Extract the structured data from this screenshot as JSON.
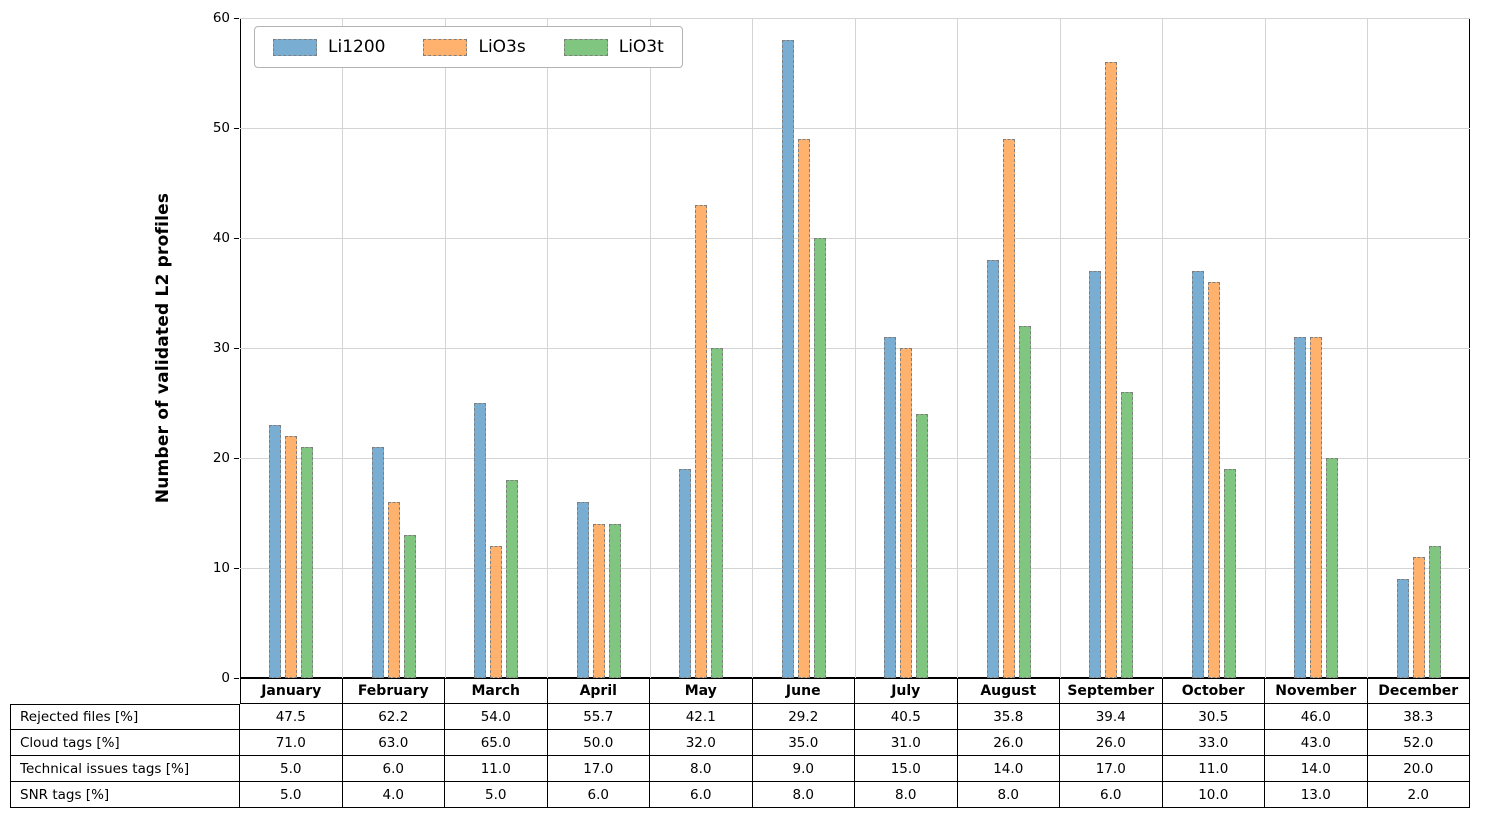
{
  "chart_data": {
    "type": "bar",
    "title": "",
    "ylabel": "Number of validated L2 profiles",
    "xlabel": "",
    "ylim": [
      0,
      60
    ],
    "yticks": [
      0,
      10,
      20,
      30,
      40,
      50,
      60
    ],
    "grid": true,
    "legend_position": "upper left",
    "bar_edge_style": "dashed gray",
    "categories": [
      "January",
      "February",
      "March",
      "April",
      "May",
      "June",
      "July",
      "August",
      "September",
      "October",
      "November",
      "December"
    ],
    "series": [
      {
        "name": "Li1200",
        "color": "#79ADD2",
        "edge_color": "#7f7f7f",
        "values": [
          23,
          21,
          25,
          16,
          19,
          58,
          31,
          38,
          37,
          37,
          31,
          9
        ]
      },
      {
        "name": "LiO3s",
        "color": "#FFB26E",
        "edge_color": "#7f7f7f",
        "values": [
          22,
          16,
          12,
          14,
          43,
          49,
          30,
          49,
          56,
          36,
          31,
          11
        ]
      },
      {
        "name": "LiO3t",
        "color": "#80C680",
        "edge_color": "#7f7f7f",
        "values": [
          21,
          13,
          18,
          14,
          30,
          40,
          24,
          32,
          26,
          19,
          20,
          12
        ]
      }
    ],
    "table": {
      "row_labels": [
        "Rejected files [%]",
        "Cloud tags [%]",
        "Technical issues tags [%]",
        "SNR tags [%]"
      ],
      "rows": [
        [
          "47.5",
          "62.2",
          "54.0",
          "55.7",
          "42.1",
          "29.2",
          "40.5",
          "35.8",
          "39.4",
          "30.5",
          "46.0",
          "38.3"
        ],
        [
          "71.0",
          "63.0",
          "65.0",
          "50.0",
          "32.0",
          "35.0",
          "31.0",
          "26.0",
          "26.0",
          "33.0",
          "43.0",
          "52.0"
        ],
        [
          "5.0",
          "6.0",
          "11.0",
          "17.0",
          "8.0",
          "9.0",
          "15.0",
          "14.0",
          "17.0",
          "11.0",
          "14.0",
          "20.0"
        ],
        [
          "5.0",
          "4.0",
          "5.0",
          "6.0",
          "6.0",
          "8.0",
          "8.0",
          "8.0",
          "6.0",
          "10.0",
          "13.0",
          "2.0"
        ]
      ]
    }
  }
}
